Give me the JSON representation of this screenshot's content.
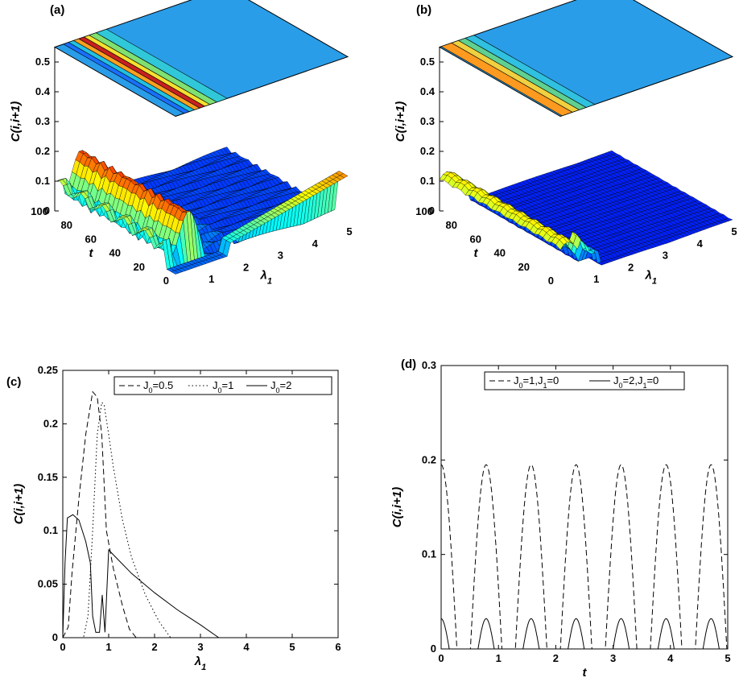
{
  "panels": {
    "a": {
      "label": "(a)"
    },
    "b": {
      "label": "(b)"
    },
    "c": {
      "label": "(c)"
    },
    "d": {
      "label": "(d)"
    }
  },
  "surface_axes": {
    "zlabel": "C(i,i+1)",
    "ylabel": "t",
    "xlabel_main": "λ",
    "xlabel_sub": "1",
    "zticks": [
      "0",
      "0.1",
      "0.2",
      "0.3",
      "0.4",
      "0.5"
    ],
    "yticks": [
      "100",
      "80",
      "60",
      "40",
      "20",
      "0"
    ],
    "xticks": [
      "1",
      "2",
      "3",
      "4",
      "5"
    ]
  },
  "colors": {
    "surface_low": "#1e90ff",
    "contour_bg": "#2a9de8",
    "line": "#000000"
  },
  "chart_data": [
    {
      "panel": "c",
      "type": "line",
      "xlabel": "λ1",
      "ylabel": "C(i,i+1)",
      "xlim": [
        0,
        6
      ],
      "ylim": [
        0,
        0.25
      ],
      "xticks": [
        "0",
        "1",
        "2",
        "3",
        "4",
        "5",
        "6"
      ],
      "yticks": [
        "0",
        "0.05",
        "0.1",
        "0.15",
        "0.2",
        "0.25"
      ],
      "legend": "top-right",
      "series": [
        {
          "name": "J0=0.5",
          "legend_main": "J",
          "legend_sub": "0",
          "legend_rest": "=0.5",
          "dash": "dashed",
          "x": [
            0,
            0.12,
            0.2,
            0.35,
            0.5,
            0.65,
            0.75,
            0.85,
            0.95,
            1.1,
            1.3,
            1.45,
            1.6,
            6
          ],
          "y": [
            0,
            0.01,
            0.06,
            0.13,
            0.19,
            0.23,
            0.225,
            0.19,
            0.1,
            0.065,
            0.03,
            0.008,
            0,
            0
          ]
        },
        {
          "name": "J0=1",
          "legend_main": "J",
          "legend_sub": "0",
          "legend_rest": "=1",
          "dash": "dotted",
          "x": [
            0,
            0.45,
            0.55,
            0.65,
            0.75,
            0.85,
            0.9,
            1.0,
            1.1,
            1.3,
            1.5,
            1.8,
            2.1,
            2.35,
            6
          ],
          "y": [
            0,
            0,
            0.02,
            0.1,
            0.19,
            0.22,
            0.218,
            0.19,
            0.16,
            0.11,
            0.075,
            0.04,
            0.015,
            0,
            0
          ]
        },
        {
          "name": "J0=2",
          "legend_main": "J",
          "legend_sub": "0",
          "legend_rest": "=2",
          "dash": "solid",
          "x": [
            0,
            0.05,
            0.1,
            0.22,
            0.35,
            0.5,
            0.6,
            0.65,
            0.72,
            0.8,
            0.86,
            0.92,
            1.0,
            1.5,
            2.0,
            2.5,
            3.0,
            3.4,
            6
          ],
          "y": [
            0,
            0.07,
            0.112,
            0.115,
            0.11,
            0.09,
            0.07,
            0.02,
            0.005,
            0.005,
            0.04,
            0.005,
            0.082,
            0.06,
            0.042,
            0.026,
            0.012,
            0,
            0
          ]
        }
      ]
    },
    {
      "panel": "d",
      "type": "line",
      "xlabel": "t",
      "ylabel": "C(i,i+1)",
      "xlim": [
        0,
        5
      ],
      "ylim": [
        0,
        0.3
      ],
      "xticks": [
        "0",
        "1",
        "2",
        "3",
        "4",
        "5"
      ],
      "yticks": [
        "0",
        "0.1",
        "0.2",
        "0.3"
      ],
      "legend": "top",
      "series": [
        {
          "name": "J0=1,J1=0",
          "legend_main": "J",
          "legend_sub": "0",
          "legend_rest": "=1,J",
          "legend_sub2": "1",
          "legend_rest2": "=0",
          "dash": "dashed",
          "period": 0.785,
          "amplitude": 0.195,
          "duty": 0.7
        },
        {
          "name": "J0=2,J1=0",
          "legend_main": "J",
          "legend_sub": "0",
          "legend_rest": "=2,J",
          "legend_sub2": "1",
          "legend_rest2": "=0",
          "dash": "solid",
          "period": 0.785,
          "amplitude": 0.032,
          "duty": 0.36
        }
      ]
    }
  ]
}
